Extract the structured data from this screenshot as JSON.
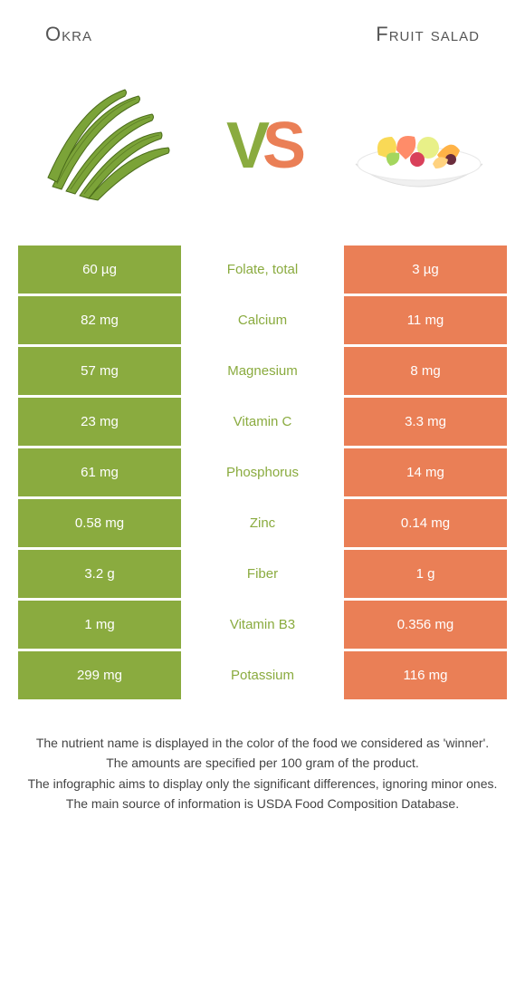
{
  "left_name": "Okra",
  "right_name": "Fruit salad",
  "vs_letters": {
    "v": "V",
    "s": "S"
  },
  "colors": {
    "left": "#8aab3f",
    "right": "#ea7f56",
    "bg": "#ffffff"
  },
  "rows": [
    {
      "left": "60 µg",
      "nutrient": "Folate, total",
      "right": "3 µg",
      "winner": "left"
    },
    {
      "left": "82 mg",
      "nutrient": "Calcium",
      "right": "11 mg",
      "winner": "left"
    },
    {
      "left": "57 mg",
      "nutrient": "Magnesium",
      "right": "8 mg",
      "winner": "left"
    },
    {
      "left": "23 mg",
      "nutrient": "Vitamin C",
      "right": "3.3 mg",
      "winner": "left"
    },
    {
      "left": "61 mg",
      "nutrient": "Phosphorus",
      "right": "14 mg",
      "winner": "left"
    },
    {
      "left": "0.58 mg",
      "nutrient": "Zinc",
      "right": "0.14 mg",
      "winner": "left"
    },
    {
      "left": "3.2 g",
      "nutrient": "Fiber",
      "right": "1 g",
      "winner": "left"
    },
    {
      "left": "1 mg",
      "nutrient": "Vitamin B3",
      "right": "0.356 mg",
      "winner": "left"
    },
    {
      "left": "299 mg",
      "nutrient": "Potassium",
      "right": "116 mg",
      "winner": "left"
    }
  ],
  "footer": [
    "The nutrient name is displayed in the color of the food we considered as 'winner'.",
    "The amounts are specified per 100 gram of the product.",
    "The infographic aims to display only the significant differences, ignoring minor ones.",
    "The main source of information is USDA Food Composition Database."
  ]
}
